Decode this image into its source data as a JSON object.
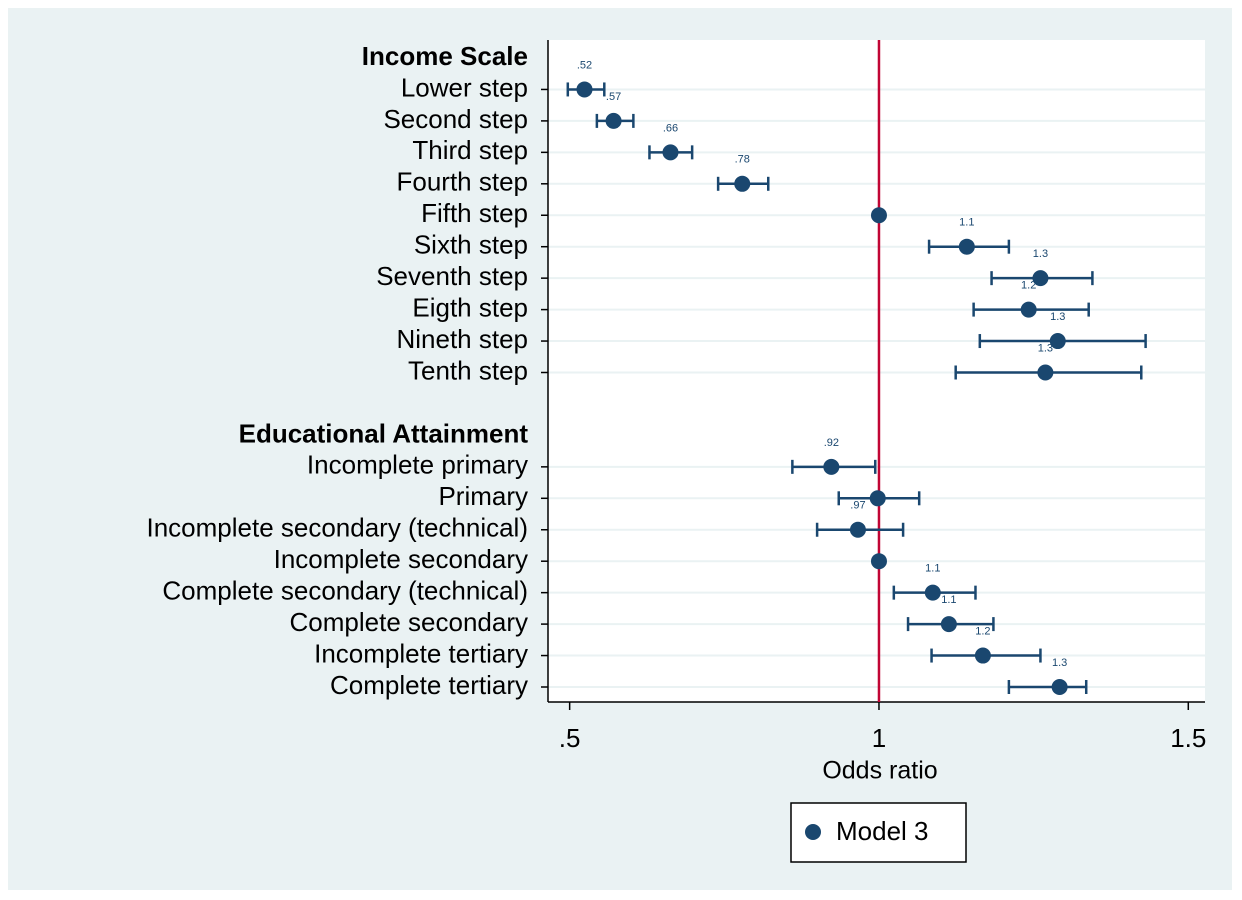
{
  "chart_data": {
    "type": "coefplot",
    "x_label": "Odds ratio",
    "xlim": [
      0.465,
      1.527
    ],
    "xticks": [
      {
        "value": 0.5,
        "label": ".5"
      },
      1,
      {
        "value": 1.5,
        "label": "1.5"
      }
    ],
    "reference_line": 1,
    "reference_color": "#c10534",
    "grid": true,
    "legend": "bottom",
    "series": [
      {
        "name": "Model 3",
        "color": "#1a476f"
      }
    ],
    "groups": [
      {
        "title": "Income Scale",
        "categories": [
          "Lower step",
          "Second step",
          "Third step",
          "Fourth step",
          "Fifth step",
          "Sixth step",
          "Seventh step",
          "Eigth step",
          "Nineth step",
          "Tenth step"
        ],
        "values": [
          0.524,
          0.571,
          0.663,
          0.779,
          1,
          1.142,
          1.261,
          1.242,
          1.289,
          1.269
        ],
        "ci_low": [
          0.497,
          0.544,
          0.629,
          0.74,
          null,
          1.081,
          1.182,
          1.153,
          1.163,
          1.124
        ],
        "ci_high": [
          0.556,
          0.603,
          0.698,
          0.821,
          null,
          1.21,
          1.345,
          1.339,
          1.431,
          1.424
        ],
        "value_labels": [
          ".52",
          ".57",
          ".66",
          ".78",
          null,
          "1.1",
          "1.3",
          "1.2",
          "1.3",
          "1.3"
        ]
      },
      {
        "title": "Educational Attainment",
        "categories": [
          "Incomplete primary",
          "Primary",
          "Incomplete secondary (technical)",
          "Incomplete secondary",
          "Complete secondary (technical)",
          "Complete secondary",
          "Incomplete tertiary",
          "Complete tertiary"
        ],
        "values": [
          0.923,
          0.998,
          0.966,
          1,
          1.087,
          1.113,
          1.168,
          1.292
        ],
        "ci_low": [
          0.86,
          0.935,
          0.9,
          null,
          1.024,
          1.047,
          1.085,
          1.21
        ],
        "ci_high": [
          0.994,
          1.065,
          1.039,
          null,
          1.156,
          1.185,
          1.261,
          1.335
        ],
        "value_labels": [
          ".92",
          null,
          ".97",
          null,
          "1.1",
          "1.1",
          "1.2",
          "1.3"
        ]
      }
    ]
  }
}
